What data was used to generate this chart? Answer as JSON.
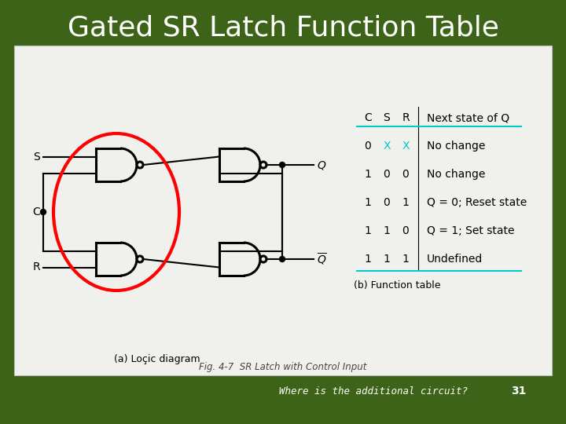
{
  "title": "Gated SR Latch Function Table",
  "title_color": "#ffffff",
  "bg_color": "#3d6318",
  "content_bg": "#f0f0ec",
  "subtitle_bottom": "Where is the additional circuit?",
  "page_number": "31",
  "fig_caption": "Fig. 4-7  SR Latch with Control Input",
  "logic_label": "(a) Loçic diagram",
  "table_label": "(b) Function table",
  "table_headers": [
    "C",
    "S",
    "R",
    "Next state of Q"
  ],
  "table_rows": [
    [
      "0",
      "X",
      "X",
      "No change"
    ],
    [
      "1",
      "0",
      "0",
      "No change"
    ],
    [
      "1",
      "0",
      "1",
      "Q = 0; Reset state"
    ],
    [
      "1",
      "1",
      "0",
      "Q = 1; Set state"
    ],
    [
      "1",
      "1",
      "1",
      "Undefined"
    ]
  ],
  "highlight_color": "#00cccc",
  "gate_lw": 2.2,
  "wire_lw": 1.5
}
